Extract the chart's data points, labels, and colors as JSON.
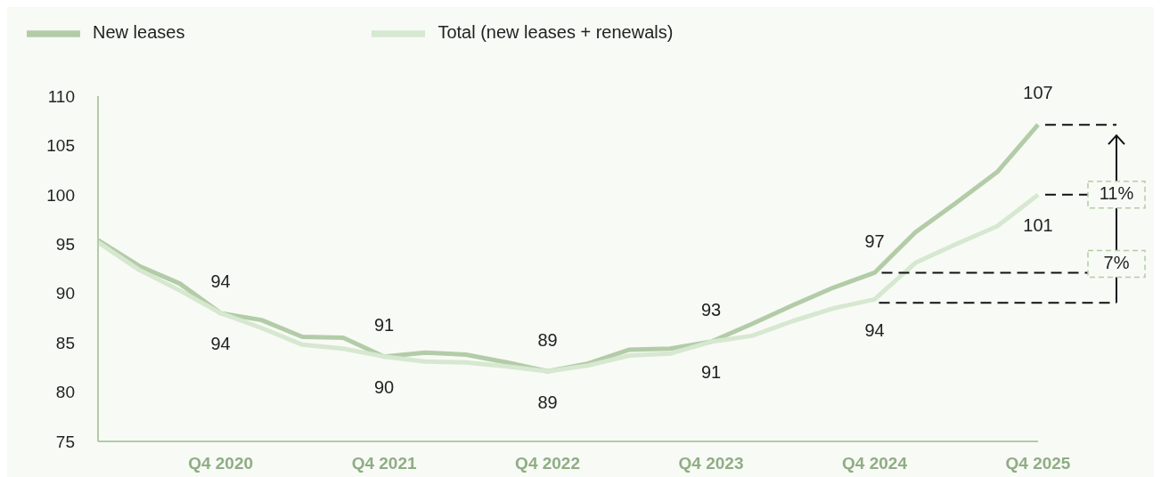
{
  "chart_data": {
    "type": "line",
    "categories": [
      null,
      null,
      null,
      "Q4 2020",
      null,
      null,
      null,
      "Q4 2021",
      null,
      null,
      null,
      "Q4 2022",
      null,
      null,
      null,
      "Q4 2023",
      null,
      null,
      null,
      "Q4 2024",
      null,
      null,
      null,
      "Q4 2025"
    ],
    "series": [
      {
        "name": "New leases",
        "color": "#b3cca8",
        "values": [
          95.4,
          92.8,
          91.0,
          88.0,
          87.3,
          85.6,
          85.5,
          83.6,
          84.0,
          83.8,
          83.0,
          82.1,
          82.9,
          84.3,
          84.4,
          85.1,
          86.9,
          88.8,
          90.6,
          92.1,
          96.2,
          99.2,
          102.3,
          107.1
        ]
      },
      {
        "name": "Total (new leases + renewals)",
        "color": "#d6e8d0",
        "values": [
          95.2,
          92.4,
          90.3,
          88.0,
          86.5,
          84.8,
          84.4,
          83.6,
          83.1,
          83.0,
          82.6,
          82.1,
          82.7,
          83.7,
          83.9,
          85.1,
          85.7,
          87.2,
          88.5,
          89.4,
          93.1,
          95.0,
          96.8,
          100.0
        ]
      }
    ],
    "ylim": [
      75,
      110
    ],
    "yticks": [
      75,
      80,
      85,
      90,
      95,
      100,
      105,
      110
    ],
    "grid": false,
    "legend": "top",
    "marker": "none",
    "line_style": "solid",
    "annotations": [
      "94",
      "94",
      "91",
      "90",
      "89",
      "89",
      "93",
      "91",
      "97",
      "94",
      "107",
      "101",
      {
        "text": "11%",
        "x": "Q4 2025",
        "y": 100.0
      },
      {
        "text": "7%",
        "x": "Q4 2024",
        "y": 92.1
      }
    ]
  }
}
